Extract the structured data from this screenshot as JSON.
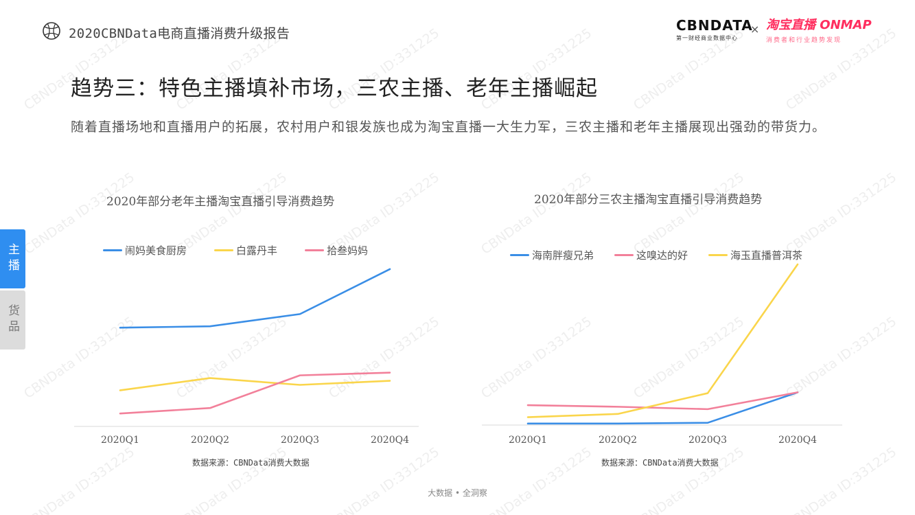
{
  "header": {
    "title": "2020CBNData电商直播消费升级报告",
    "logo_cbn": "CBNDATA",
    "logo_cbn_sub": "第一财经商业数据中心",
    "times": "×",
    "logo_tb": "淘宝直播 ONMAP",
    "logo_tb_sub": "消费者和行业趋势发现"
  },
  "main": {
    "title": "趋势三：特色主播填补市场，三农主播、老年主播崛起",
    "description": "随着直播场地和直播用户的拓展，农村用户和银发族也成为淘宝直播一大生力军，三农主播和老年主播展现出强劲的带货力。"
  },
  "side_tabs": [
    {
      "label": "主播",
      "active": true
    },
    {
      "label": "货品",
      "active": false
    }
  ],
  "watermark": "CBNData ID:331225",
  "footer": "大数据 • 全洞察",
  "colors": {
    "blue": "#3a8ee6",
    "yellow": "#fad54b",
    "pink": "#f2809a",
    "accent": "#2f8ef0"
  },
  "chart_data": [
    {
      "type": "line",
      "title": "2020年部分老年主播淘宝直播引导消费趋势",
      "categories": [
        "2020Q1",
        "2020Q2",
        "2020Q3",
        "2020Q4"
      ],
      "series": [
        {
          "name": "闹妈美食厨房",
          "color": "#3a8ee6",
          "values": [
            72,
            73,
            82,
            115
          ]
        },
        {
          "name": "白露丹丰",
          "color": "#fad54b",
          "values": [
            26,
            35,
            30,
            33
          ]
        },
        {
          "name": "拾叁妈妈",
          "color": "#f2809a",
          "values": [
            9,
            13,
            37,
            39
          ]
        }
      ],
      "ylim": [
        0,
        120
      ],
      "grid": false,
      "legend": "top",
      "source": "数据来源：CBNData消费大数据"
    },
    {
      "type": "line",
      "title": "2020年部分三农主播淘宝直播引导消费趋势",
      "categories": [
        "2020Q1",
        "2020Q2",
        "2020Q3",
        "2020Q4"
      ],
      "series": [
        {
          "name": "海南胖瘦兄弟",
          "color": "#3a8ee6",
          "values": [
            0.5,
            0.5,
            1,
            20
          ]
        },
        {
          "name": "这嗅达的好",
          "color": "#f2809a",
          "values": [
            12,
            11,
            9.5,
            20
          ]
        },
        {
          "name": "海玉直播普洱茶",
          "color": "#fad54b",
          "values": [
            4.5,
            6.5,
            19.5,
            100
          ]
        }
      ],
      "ylim": [
        0,
        100
      ],
      "grid": false,
      "legend": "top",
      "source": "数据来源：CBNData消费大数据"
    }
  ]
}
